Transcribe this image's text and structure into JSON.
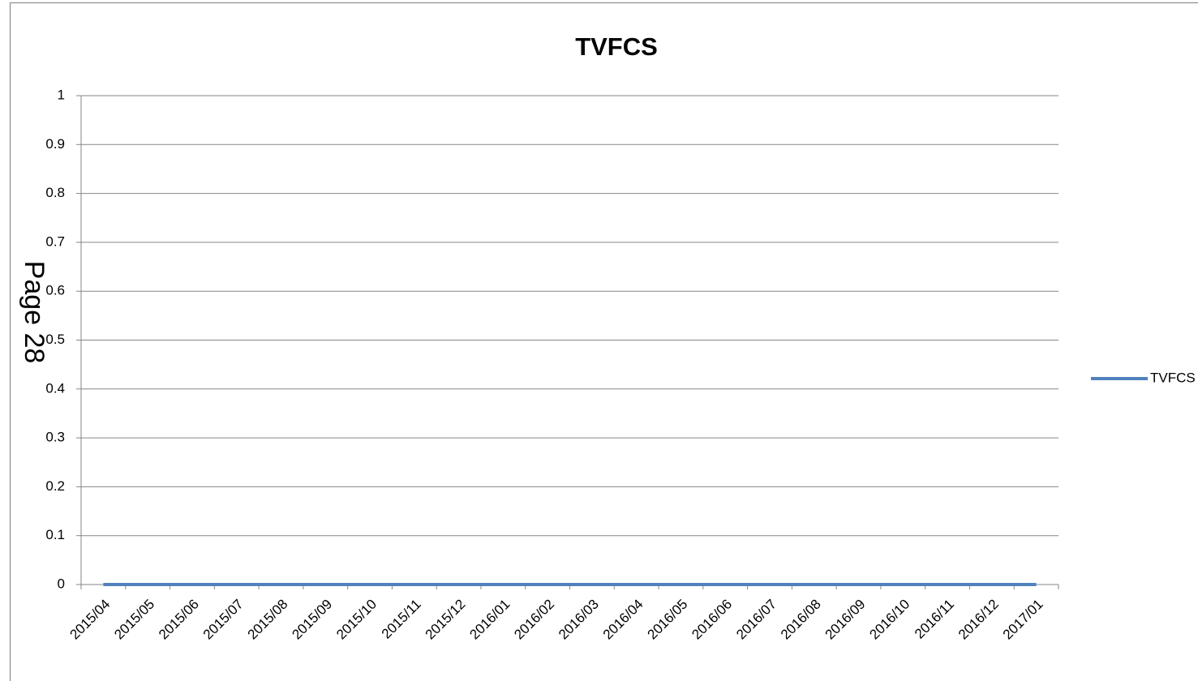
{
  "chart_data": {
    "type": "line",
    "title": "TVFCS",
    "annotation": "Page 28",
    "categories": [
      "2015/04",
      "2015/05",
      "2015/06",
      "2015/07",
      "2015/08",
      "2015/09",
      "2015/10",
      "2015/11",
      "2015/12",
      "2016/01",
      "2016/02",
      "2016/03",
      "2016/04",
      "2016/05",
      "2016/06",
      "2016/07",
      "2016/08",
      "2016/09",
      "2016/10",
      "2016/11",
      "2016/12",
      "2017/01"
    ],
    "series": [
      {
        "name": "TVFCS",
        "color": "#4f81bd",
        "values": [
          0,
          0,
          0,
          0,
          0,
          0,
          0,
          0,
          0,
          0,
          0,
          0,
          0,
          0,
          0,
          0,
          0,
          0,
          0,
          0,
          0,
          0
        ]
      }
    ],
    "ylim": [
      0,
      1
    ],
    "yticks": [
      0,
      0.1,
      0.2,
      0.3,
      0.4,
      0.5,
      0.6,
      0.7,
      0.8,
      0.9,
      1
    ],
    "grid": true,
    "legend": "right"
  }
}
